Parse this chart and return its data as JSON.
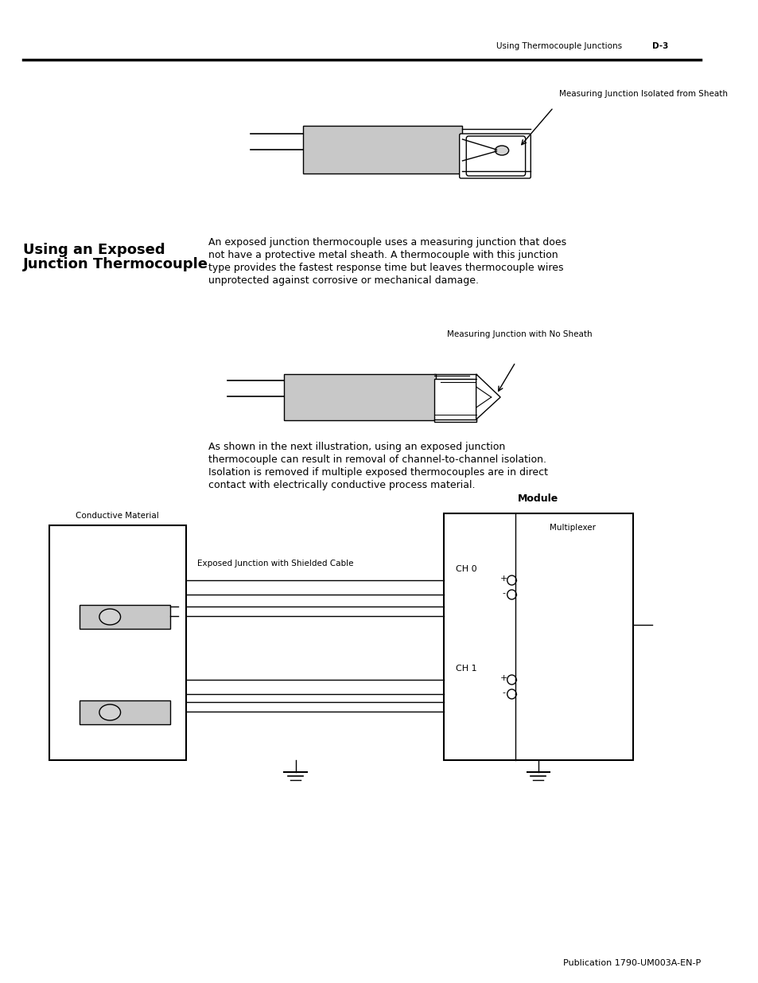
{
  "header_text": "Using Thermocouple Junctions",
  "header_page": "D-3",
  "section_title_line1": "Using an Exposed",
  "section_title_line2": "Junction Thermocouple",
  "body_text": "An exposed junction thermocouple uses a measuring junction that does\nnot have a protective metal sheath. A thermocouple with this junction\ntype provides the fastest response time but leaves thermocouple wires\nunprotected against corrosive or mechanical damage.",
  "label_top": "Measuring Junction Isolated from Sheath",
  "label_middle": "Measuring Junction with No Sheath",
  "label_conductive": "Conductive Material",
  "label_exposed": "Exposed Junction with Shielded Cable",
  "label_module": "Module",
  "label_multiplexer": "Multiplexer",
  "label_ch0": "CH 0",
  "label_ch1": "CH 1",
  "body_text2": "As shown in the next illustration, using an exposed junction\nthermocouple can result in removal of channel-to-channel isolation.\nIsolation is removed if multiple exposed thermocouples are in direct\ncontact with electrically conductive process material.",
  "footer_text": "Publication 1790-UM003A-EN-P",
  "bg_color": "#ffffff",
  "gray_fill": "#c8c8c8",
  "line_color": "#000000"
}
